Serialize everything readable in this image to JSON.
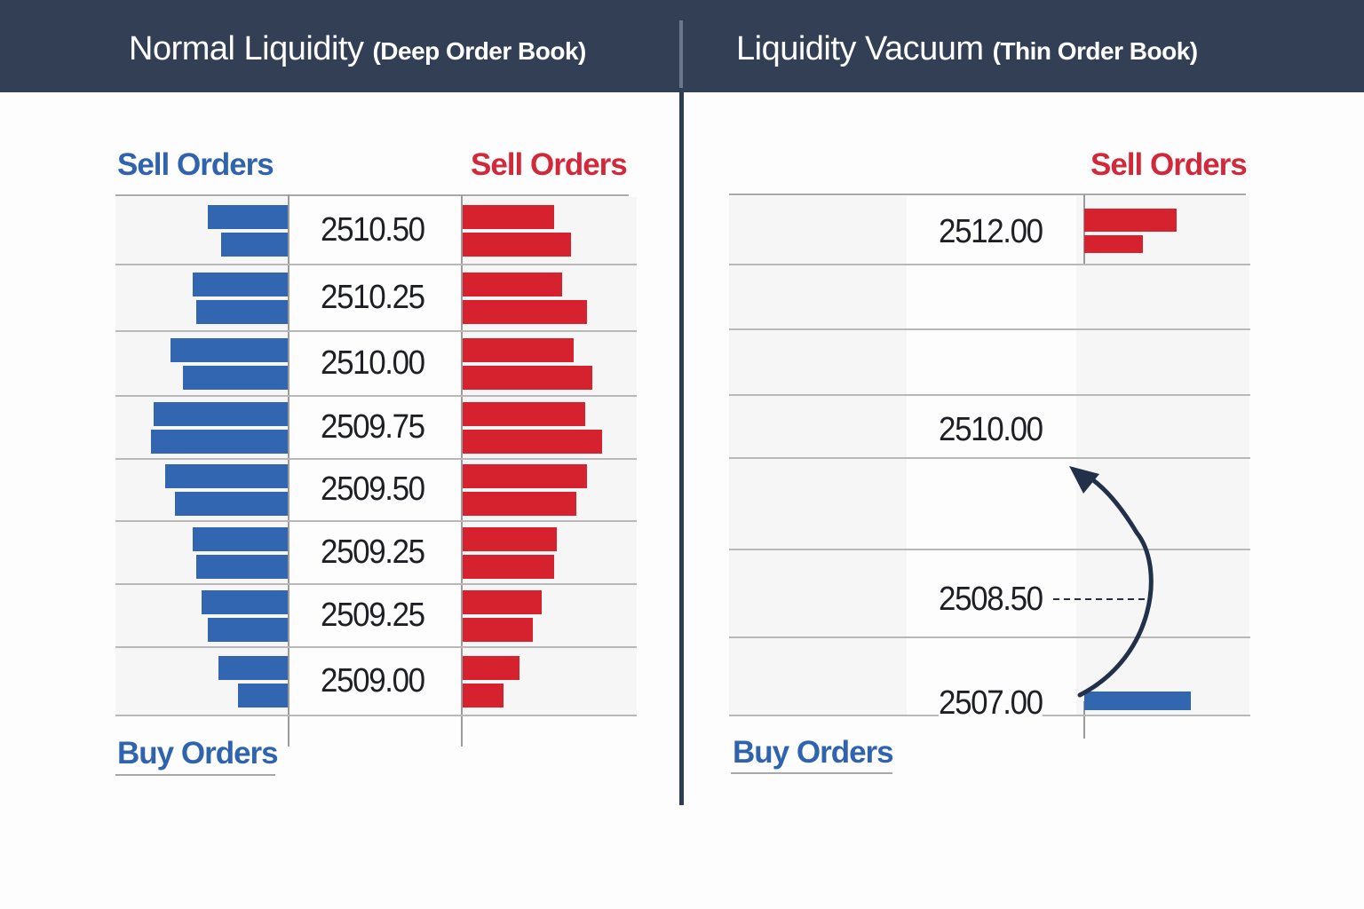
{
  "header": {
    "left": {
      "title": "Normal Liquidity",
      "subtitle": "(Deep Order Book)"
    },
    "right": {
      "title": "Liquidity Vacuum",
      "subtitle": "(Thin Order Book)"
    }
  },
  "colors": {
    "header_bg": "#323f55",
    "buy_blue": "#3366b0",
    "sell_red": "#d5222e",
    "label_blue": "#2f63ad",
    "label_red": "#d3283a",
    "arrow": "#22304a"
  },
  "left_panel": {
    "labels": {
      "sell_left": "Sell Orders",
      "sell_right": "Sell Orders",
      "buy": "Buy Orders"
    },
    "rows": [
      {
        "price": "2510.50",
        "buy_bars": [
          90,
          75
        ],
        "sell_bars": [
          103,
          122
        ]
      },
      {
        "price": "2510.25",
        "buy_bars": [
          107,
          103
        ],
        "sell_bars": [
          112,
          140
        ]
      },
      {
        "price": "2510.00",
        "buy_bars": [
          132,
          118
        ],
        "sell_bars": [
          125,
          146
        ]
      },
      {
        "price": "2509.75",
        "buy_bars": [
          151,
          154
        ],
        "sell_bars": [
          138,
          157
        ]
      },
      {
        "price": "2509.50",
        "buy_bars": [
          138,
          127
        ],
        "sell_bars": [
          140,
          128
        ]
      },
      {
        "price": "2509.25",
        "buy_bars": [
          107,
          103
        ],
        "sell_bars": [
          106,
          103
        ]
      },
      {
        "price": "2509.25",
        "buy_bars": [
          97,
          90
        ],
        "sell_bars": [
          89,
          79
        ]
      },
      {
        "price": "2509.00",
        "buy_bars": [
          78,
          56
        ],
        "sell_bars": [
          64,
          46
        ]
      }
    ]
  },
  "right_panel": {
    "labels": {
      "sell": "Sell Orders",
      "buy": "Buy Orders"
    },
    "rows": [
      {
        "price": "2512.00",
        "sell_bars": [
          104,
          66
        ]
      },
      {
        "price": ""
      },
      {
        "price": ""
      },
      {
        "price": "2510.00"
      },
      {
        "price": ""
      },
      {
        "price": "2508.50",
        "dashed_marker": true
      },
      {
        "price": "2507.00",
        "buy_bars": [
          120
        ]
      }
    ],
    "annotation": "price-jump-arrow from 2507.00 up to 2510.00"
  },
  "chart_data": {
    "type": "bar",
    "title": "Normal Liquidity (Deep Order Book) vs Liquidity Vacuum (Thin Order Book)",
    "panels": [
      {
        "name": "Normal Liquidity (Deep Order Book)",
        "categories": [
          "2510.50",
          "2510.25",
          "2510.00",
          "2509.75",
          "2509.50",
          "2509.25",
          "2509.25",
          "2509.00"
        ],
        "series": [
          {
            "name": "Sell Orders (blue, left side)",
            "values": [
              [
                90,
                75
              ],
              [
                107,
                103
              ],
              [
                132,
                118
              ],
              [
                151,
                154
              ],
              [
                138,
                127
              ],
              [
                107,
                103
              ],
              [
                97,
                90
              ],
              [
                78,
                56
              ]
            ]
          },
          {
            "name": "Sell Orders (red, right side)",
            "values": [
              [
                103,
                122
              ],
              [
                112,
                140
              ],
              [
                125,
                146
              ],
              [
                138,
                157
              ],
              [
                140,
                128
              ],
              [
                106,
                103
              ],
              [
                89,
                79
              ],
              [
                64,
                46
              ]
            ]
          }
        ],
        "labels": [
          "Sell Orders",
          "Sell Orders",
          "Buy Orders"
        ],
        "units": "relative bar length (px)"
      },
      {
        "name": "Liquidity Vacuum (Thin Order Book)",
        "categories": [
          "2512.00",
          "2510.00",
          "2508.50",
          "2507.00"
        ],
        "series": [
          {
            "name": "Sell Orders (red)",
            "values": [
              [
                104,
                66
              ],
              null,
              null,
              null
            ]
          },
          {
            "name": "Buy Orders (blue)",
            "values": [
              null,
              null,
              null,
              [
                120
              ]
            ]
          }
        ],
        "annotations": [
          "Dashed marker at 2508.50",
          "Curved arrow from 2507.00 to 2510.00"
        ],
        "units": "relative bar length (px)"
      }
    ]
  }
}
